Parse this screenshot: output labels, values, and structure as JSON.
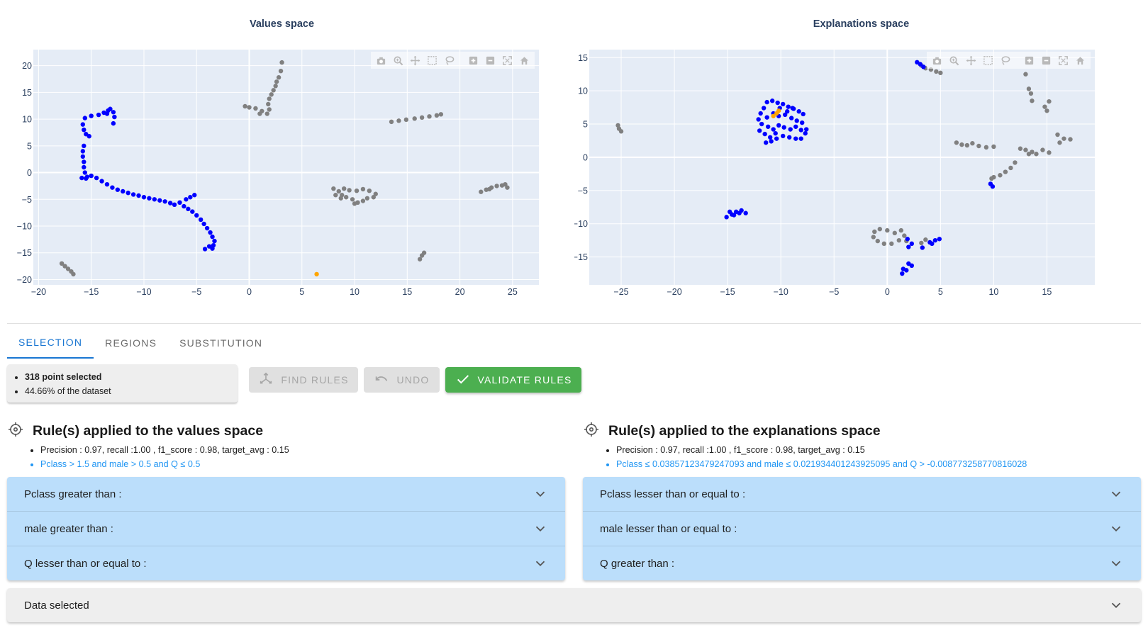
{
  "plots": {
    "values_title": "Values space",
    "explanations_title": "Explanations space",
    "modebar_icons": [
      "camera-icon",
      "zoom-icon",
      "pan-icon",
      "box-select-icon",
      "lasso-icon",
      "zoom-in-icon",
      "zoom-out-icon",
      "autoscale-icon",
      "home-icon"
    ]
  },
  "chart_data": [
    {
      "type": "scatter",
      "title": "Values space",
      "xlim": [
        -20.5,
        27.5
      ],
      "ylim": [
        -21,
        23
      ],
      "xticks": [
        -20,
        -15,
        -10,
        -5,
        0,
        5,
        10,
        15,
        20,
        25
      ],
      "yticks": [
        -20,
        -15,
        -10,
        -5,
        0,
        5,
        10,
        15,
        20
      ],
      "grid": true,
      "colors": {
        "selected": "#0000ff",
        "other": "#808080",
        "highlight": "#ffa500"
      },
      "series": [
        {
          "group": "selected",
          "points": [
            [
              -15.8,
              9
            ],
            [
              -15.7,
              8
            ],
            [
              -15.5,
              7.2
            ],
            [
              -15.2,
              6.8
            ],
            [
              -15.6,
              10.2
            ],
            [
              -15,
              10.6
            ],
            [
              -14.3,
              10.8
            ],
            [
              -13.8,
              11.2
            ],
            [
              -13.4,
              11.6
            ],
            [
              -13.2,
              11.9
            ],
            [
              -12.9,
              11.3
            ],
            [
              -12.8,
              10.4
            ],
            [
              -12.9,
              9.2
            ],
            [
              -13.5,
              11
            ],
            [
              -15.7,
              5
            ],
            [
              -15.8,
              4
            ],
            [
              -15.8,
              3
            ],
            [
              -15.7,
              2
            ],
            [
              -15.7,
              1
            ],
            [
              -15.6,
              0
            ],
            [
              -15.4,
              -0.8
            ],
            [
              -15.9,
              -1
            ],
            [
              -15.5,
              -1.1
            ],
            [
              -15,
              -0.6
            ],
            [
              -14.5,
              -1
            ],
            [
              -14,
              -1.6
            ],
            [
              -13.5,
              -2.2
            ],
            [
              -13,
              -2.8
            ],
            [
              -12.5,
              -3.2
            ],
            [
              -12,
              -3.5
            ],
            [
              -11.5,
              -3.8
            ],
            [
              -11,
              -4.1
            ],
            [
              -10.5,
              -4.3
            ],
            [
              -10,
              -4.6
            ],
            [
              -9.5,
              -4.8
            ],
            [
              -9,
              -5
            ],
            [
              -8.5,
              -5.2
            ],
            [
              -8,
              -5.4
            ],
            [
              -7.5,
              -5.7
            ],
            [
              -7.1,
              -6
            ],
            [
              -6.6,
              -5.6
            ],
            [
              -6.2,
              -6.3
            ],
            [
              -5.8,
              -6.8
            ],
            [
              -5.4,
              -7.3
            ],
            [
              -5,
              -8
            ],
            [
              -4.6,
              -8.8
            ],
            [
              -4.3,
              -9.6
            ],
            [
              -4,
              -10.4
            ],
            [
              -3.7,
              -11.2
            ],
            [
              -3.5,
              -12
            ],
            [
              -3.3,
              -12.8
            ],
            [
              -3.4,
              -13.6
            ],
            [
              -3.5,
              -14.2
            ],
            [
              -3.8,
              -13.8
            ],
            [
              -4.2,
              -14.3
            ],
            [
              -5.2,
              -4.2
            ],
            [
              -5.6,
              -4.6
            ],
            [
              -6,
              -5
            ]
          ]
        },
        {
          "group": "other",
          "points": [
            [
              -17.8,
              -17
            ],
            [
              -17.5,
              -17.5
            ],
            [
              -17.2,
              -18
            ],
            [
              -16.9,
              -18.5
            ],
            [
              -16.7,
              -19
            ],
            [
              -0.4,
              12.4
            ],
            [
              0,
              12.2
            ],
            [
              0.6,
              12
            ],
            [
              1.2,
              11.5
            ],
            [
              1.7,
              11
            ],
            [
              1.9,
              11.8
            ],
            [
              1.8,
              12.8
            ],
            [
              1.9,
              13.8
            ],
            [
              2.1,
              14.6
            ],
            [
              2.3,
              15.4
            ],
            [
              2.5,
              16.2
            ],
            [
              2.6,
              17
            ],
            [
              2.8,
              17.8
            ],
            [
              3,
              19
            ],
            [
              3.1,
              20.6
            ],
            [
              1,
              11
            ],
            [
              13.5,
              9.5
            ],
            [
              14.2,
              9.7
            ],
            [
              14.9,
              9.9
            ],
            [
              15.7,
              10.1
            ],
            [
              16.4,
              10.3
            ],
            [
              17.1,
              10.5
            ],
            [
              17.8,
              10.7
            ],
            [
              18.2,
              10.9
            ],
            [
              8,
              -3
            ],
            [
              8.5,
              -3.5
            ],
            [
              8.8,
              -4.2
            ],
            [
              9.2,
              -4.6
            ],
            [
              9.8,
              -5
            ],
            [
              10.3,
              -5.6
            ],
            [
              10.8,
              -5.3
            ],
            [
              11.2,
              -4.8
            ],
            [
              11.8,
              -4.6
            ],
            [
              12,
              -4
            ],
            [
              11.4,
              -3.4
            ],
            [
              10.8,
              -3.1
            ],
            [
              10.2,
              -3.4
            ],
            [
              9.5,
              -3.3
            ],
            [
              9,
              -3
            ],
            [
              8.2,
              -4.2
            ],
            [
              8.7,
              -4.8
            ],
            [
              10,
              -5.8
            ],
            [
              22,
              -3.6
            ],
            [
              22.5,
              -3.2
            ],
            [
              23,
              -2.8
            ],
            [
              23.5,
              -2.5
            ],
            [
              24,
              -2.4
            ],
            [
              24.5,
              -2.8
            ],
            [
              24.3,
              -2.2
            ],
            [
              22.8,
              -3.1
            ],
            [
              16.2,
              -16.2
            ],
            [
              16.4,
              -15.5
            ],
            [
              16.6,
              -15
            ]
          ]
        },
        {
          "group": "highlight",
          "points": [
            [
              6.4,
              -19
            ]
          ]
        }
      ]
    },
    {
      "type": "scatter",
      "title": "Explanations space",
      "xlim": [
        -28,
        19.5
      ],
      "ylim": [
        -19.2,
        16.2
      ],
      "xticks": [
        -25,
        -20,
        -15,
        -10,
        -5,
        0,
        5,
        10,
        15
      ],
      "yticks": [
        -15,
        -10,
        -5,
        0,
        5,
        10,
        15
      ],
      "grid": true,
      "colors": {
        "selected": "#0000ff",
        "other": "#808080",
        "highlight": "#ffa500"
      },
      "series": [
        {
          "group": "selected",
          "points": [
            [
              -11.3,
              8.3
            ],
            [
              -10.8,
              8.5
            ],
            [
              -10.3,
              8.2
            ],
            [
              -9.8,
              8
            ],
            [
              -9.3,
              7.6
            ],
            [
              -8.8,
              7.3
            ],
            [
              -8.3,
              6.9
            ],
            [
              -7.9,
              6.5
            ],
            [
              -11.6,
              7.4
            ],
            [
              -11.9,
              6.6
            ],
            [
              -11.3,
              6
            ],
            [
              -10.7,
              6.6
            ],
            [
              -10.2,
              6.2
            ],
            [
              -9.6,
              6.4
            ],
            [
              -9,
              5.9
            ],
            [
              -8.5,
              5.5
            ],
            [
              -8,
              5.2
            ],
            [
              -11.8,
              5
            ],
            [
              -11.2,
              4.6
            ],
            [
              -10.7,
              4.2
            ],
            [
              -10.2,
              4.8
            ],
            [
              -9.7,
              4.5
            ],
            [
              -9.1,
              4.2
            ],
            [
              -8.6,
              4.6
            ],
            [
              -8.1,
              4.1
            ],
            [
              -7.7,
              3.6
            ],
            [
              -11.5,
              3.5
            ],
            [
              -11,
              3
            ],
            [
              -10.5,
              3.6
            ],
            [
              -9.8,
              3.2
            ],
            [
              -9.2,
              3
            ],
            [
              -8.6,
              2.8
            ],
            [
              -8.1,
              2.8
            ],
            [
              -7.6,
              4.2
            ],
            [
              -11.4,
              2.2
            ],
            [
              -10.9,
              2.4
            ],
            [
              -10.4,
              2.8
            ],
            [
              -9.4,
              6.9
            ],
            [
              -8.9,
              7.4
            ],
            [
              -10.1,
              7.4
            ],
            [
              -12,
              4
            ],
            [
              -12.1,
              5.7
            ],
            [
              -15.1,
              -9
            ],
            [
              -14.6,
              -8.6
            ],
            [
              -14.2,
              -8.2
            ],
            [
              -13.7,
              -8
            ],
            [
              -13.3,
              -8.4
            ],
            [
              -14.8,
              -8.2
            ],
            [
              -14.4,
              -8.7
            ],
            [
              -13.9,
              -8.4
            ],
            [
              2.8,
              14.3
            ],
            [
              3.1,
              14
            ],
            [
              3.4,
              13.6
            ],
            [
              9.7,
              -4
            ],
            [
              9.9,
              -4.4
            ],
            [
              2,
              -13.5
            ],
            [
              2.3,
              -13
            ],
            [
              2,
              -16
            ],
            [
              1.5,
              -16.8
            ],
            [
              2.3,
              -16.3
            ],
            [
              1.8,
              -17
            ],
            [
              1.4,
              -17.5
            ],
            [
              4,
              -12.8
            ],
            [
              4.5,
              -12.5
            ],
            [
              4.9,
              -12.3
            ],
            [
              3.3,
              -13.6
            ],
            [
              4.2,
              -13
            ],
            [
              1.9,
              -12.3
            ]
          ]
        },
        {
          "group": "other",
          "points": [
            [
              -25.3,
              4.8
            ],
            [
              -25.2,
              4.3
            ],
            [
              -25,
              3.9
            ],
            [
              3.2,
              13.8
            ],
            [
              3.6,
              13.4
            ],
            [
              4.1,
              13.2
            ],
            [
              4.6,
              12.9
            ],
            [
              5,
              12.7
            ],
            [
              13,
              12.5
            ],
            [
              13.3,
              10.3
            ],
            [
              13.5,
              9.6
            ],
            [
              13.6,
              8.5
            ],
            [
              14.8,
              7.6
            ],
            [
              15.2,
              8.4
            ],
            [
              15,
              7
            ],
            [
              6.5,
              2.2
            ],
            [
              7,
              1.9
            ],
            [
              7.5,
              1.8
            ],
            [
              8,
              2.1
            ],
            [
              8.6,
              1.7
            ],
            [
              9.3,
              1.5
            ],
            [
              10,
              1.6
            ],
            [
              12.5,
              1.3
            ],
            [
              13,
              1.1
            ],
            [
              13.6,
              0.8
            ],
            [
              14,
              0.5
            ],
            [
              14.6,
              1.1
            ],
            [
              15.2,
              0.7
            ],
            [
              13.3,
              0.5
            ],
            [
              16,
              3.4
            ],
            [
              16.6,
              2.8
            ],
            [
              17.2,
              2.7
            ],
            [
              16.2,
              2.2
            ],
            [
              12,
              -0.8
            ],
            [
              11.6,
              -1.6
            ],
            [
              11.1,
              -2.2
            ],
            [
              10.6,
              -2.7
            ],
            [
              10,
              -3
            ],
            [
              9.8,
              -3.2
            ],
            [
              -1.2,
              -11.2
            ],
            [
              -0.7,
              -10.8
            ],
            [
              0,
              -11
            ],
            [
              0.7,
              -11.4
            ],
            [
              1.3,
              -11
            ],
            [
              1.6,
              -11.8
            ],
            [
              1.1,
              -12.5
            ],
            [
              0.4,
              -13
            ],
            [
              -0.3,
              -13
            ],
            [
              -0.9,
              -12.6
            ],
            [
              -1.3,
              -12
            ],
            [
              1.8,
              -12.6
            ],
            [
              3.2,
              -12.9
            ],
            [
              3.6,
              -12.4
            ]
          ]
        },
        {
          "group": "highlight",
          "points": [
            [
              -10.4,
              6.6
            ],
            [
              -10.7,
              6.2
            ],
            [
              -10.2,
              7
            ]
          ]
        }
      ]
    }
  ],
  "tabs": [
    "Selection",
    "Regions",
    "Substitution"
  ],
  "selection": {
    "count_text": "318 point selected",
    "percent_text": "44.66% of the dataset"
  },
  "buttons": {
    "find_rules": "Find rules",
    "undo": "Undo",
    "validate_rules": "Validate rules"
  },
  "rules_values": {
    "title": "Rule(s) applied to the values space",
    "metrics": "Precision : 0.97, recall :1.00 , f1_score : 0.98, target_avg : 0.15",
    "rule": "Pclass > 1.5 and male > 0.5 and Q ≤ 0.5",
    "items": [
      "Pclass greater than :",
      "male greater than :",
      "Q lesser than or equal to :"
    ]
  },
  "rules_explanations": {
    "title": "Rule(s) applied to the explanations space",
    "metrics": "Precision : 0.97, recall :1.00 , f1_score : 0.98, target_avg : 0.15",
    "rule": "Pclass ≤ 0.03857123479247093 and male ≤ 0.021934401243925095 and Q > -0.008773258770816028",
    "items": [
      "Pclass lesser than or equal to :",
      "male lesser than or equal to :",
      "Q greater than :"
    ]
  },
  "data_selected": "Data selected"
}
